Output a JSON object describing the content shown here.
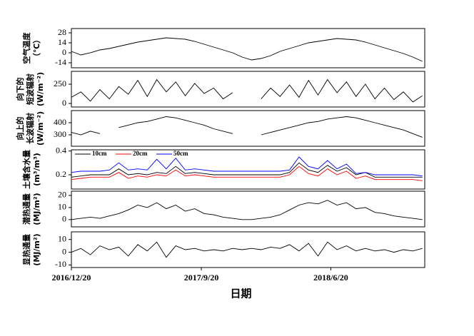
{
  "chart_data": [
    {
      "type": "line",
      "ylabel": [
        "空气温度",
        "（℃）"
      ],
      "ylim": [
        -21,
        34
      ],
      "yticks": [
        28,
        14,
        0,
        -14
      ],
      "xlim": [
        "2016/12/20",
        "2019/1/4"
      ],
      "x": [
        "2016/12/20",
        "2017/1/9",
        "2017/1/29",
        "2017/2/18",
        "2017/3/10",
        "2017/3/30",
        "2017/4/19",
        "2017/5/9",
        "2017/5/29",
        "2017/6/18",
        "2017/7/8",
        "2017/7/28",
        "2017/8/17",
        "2017/9/6",
        "2017/9/26",
        "2017/10/16",
        "2017/11/5",
        "2017/11/25",
        "2017/12/15",
        "2018/1/4",
        "2018/1/24",
        "2018/2/13",
        "2018/3/5",
        "2018/3/25",
        "2018/4/14",
        "2018/5/4",
        "2018/5/24",
        "2018/6/13",
        "2018/7/3",
        "2018/7/23",
        "2018/8/12",
        "2018/9/1",
        "2018/9/21",
        "2018/10/11",
        "2018/10/31",
        "2018/11/20",
        "2018/12/10",
        "2018/12/30"
      ],
      "series": [
        {
          "color": "#000000",
          "values": [
            2,
            -3,
            0,
            4,
            6,
            9,
            12,
            15,
            17,
            19,
            21,
            20,
            19,
            16,
            12,
            8,
            4,
            0,
            -6,
            -10,
            -8,
            -4,
            2,
            6,
            10,
            14,
            16,
            18,
            20,
            19,
            18,
            15,
            11,
            7,
            3,
            -1,
            -6,
            -12
          ]
        }
      ]
    },
    {
      "type": "line",
      "ylabel": [
        "向下的",
        "短波辐射",
        "(W/m⁻²)"
      ],
      "ylim": [
        -46,
        417
      ],
      "yticks": [
        250,
        0
      ],
      "xlim": [
        "2016/12/20",
        "2019/1/4"
      ],
      "x": [
        "2016/12/20",
        "2017/1/9",
        "2017/1/29",
        "2017/2/18",
        "2017/3/10",
        "2017/3/30",
        "2017/4/19",
        "2017/5/9",
        "2017/5/29",
        "2017/6/18",
        "2017/7/8",
        "2017/7/28",
        "2017/8/17",
        "2017/9/6",
        "2017/9/26",
        "2017/10/16",
        "2017/11/5",
        "2017/11/25",
        "2017/12/15",
        "2018/1/4",
        "2018/1/24",
        "2018/2/13",
        "2018/3/5",
        "2018/3/25",
        "2018/4/14",
        "2018/5/4",
        "2018/5/24",
        "2018/6/13",
        "2018/7/3",
        "2018/7/23",
        "2018/8/12",
        "2018/9/1",
        "2018/9/21",
        "2018/10/11",
        "2018/10/31",
        "2018/11/20",
        "2018/12/10",
        "2018/12/30"
      ],
      "series": [
        {
          "color": "#000000",
          "values": [
            80,
            150,
            30,
            180,
            60,
            220,
            120,
            300,
            90,
            310,
            150,
            280,
            100,
            260,
            130,
            200,
            60,
            140,
            null,
            null,
            60,
            200,
            90,
            240,
            80,
            300,
            110,
            310,
            140,
            280,
            90,
            250,
            60,
            200,
            50,
            150,
            20,
            100
          ]
        }
      ]
    },
    {
      "type": "line",
      "ylabel": [
        "向上的",
        "长波辐射",
        "(W/m⁻²)"
      ],
      "ylim": [
        206,
        500
      ],
      "yticks": [
        400,
        300
      ],
      "xlim": [
        "2016/12/20",
        "2019/1/4"
      ],
      "x": [
        "2016/12/20",
        "2017/1/9",
        "2017/1/29",
        "2017/2/18",
        "2017/3/10",
        "2017/3/30",
        "2017/4/19",
        "2017/5/9",
        "2017/5/29",
        "2017/6/18",
        "2017/7/8",
        "2017/7/28",
        "2017/8/17",
        "2017/9/6",
        "2017/9/26",
        "2017/10/16",
        "2017/11/5",
        "2017/11/25",
        "2017/12/15",
        "2018/1/4",
        "2018/1/24",
        "2018/2/13",
        "2018/3/5",
        "2018/3/25",
        "2018/4/14",
        "2018/5/4",
        "2018/5/24",
        "2018/6/13",
        "2018/7/3",
        "2018/7/23",
        "2018/8/12",
        "2018/9/1",
        "2018/9/21",
        "2018/10/11",
        "2018/10/31",
        "2018/11/20",
        "2018/12/10",
        "2018/12/30"
      ],
      "series": [
        {
          "color": "#000000",
          "values": [
            320,
            300,
            330,
            310,
            null,
            360,
            380,
            400,
            410,
            430,
            450,
            440,
            420,
            400,
            380,
            350,
            330,
            310,
            null,
            null,
            300,
            320,
            340,
            360,
            380,
            400,
            410,
            430,
            440,
            450,
            440,
            420,
            400,
            380,
            360,
            340,
            310,
            280
          ]
        }
      ]
    },
    {
      "type": "line",
      "ylabel": [
        "土壤含水量",
        "(m³/m³)"
      ],
      "ylim": [
        0.08,
        0.41
      ],
      "yticks": [
        0.4,
        0.2
      ],
      "xlim": [
        "2016/12/20",
        "2019/1/4"
      ],
      "legend": "upper left",
      "x": [
        "2016/12/20",
        "2017/1/9",
        "2017/1/29",
        "2017/2/18",
        "2017/3/10",
        "2017/3/30",
        "2017/4/19",
        "2017/5/9",
        "2017/5/29",
        "2017/6/18",
        "2017/7/8",
        "2017/7/28",
        "2017/8/17",
        "2017/9/6",
        "2017/9/26",
        "2017/10/16",
        "2017/11/5",
        "2017/11/25",
        "2017/12/15",
        "2018/1/4",
        "2018/1/24",
        "2018/2/13",
        "2018/3/5",
        "2018/3/25",
        "2018/4/14",
        "2018/5/4",
        "2018/5/24",
        "2018/6/13",
        "2018/7/3",
        "2018/7/23",
        "2018/8/12",
        "2018/9/1",
        "2018/9/21",
        "2018/10/11",
        "2018/10/31",
        "2018/11/20",
        "2018/12/10",
        "2018/12/30"
      ],
      "series": [
        {
          "name": "10cm",
          "color": "#000000",
          "values": [
            0.18,
            0.19,
            0.2,
            0.2,
            0.2,
            0.25,
            0.2,
            0.21,
            0.2,
            0.22,
            0.21,
            0.27,
            0.21,
            0.22,
            0.21,
            0.2,
            0.2,
            0.2,
            0.2,
            0.2,
            0.2,
            0.2,
            0.2,
            0.22,
            0.3,
            0.24,
            0.22,
            0.28,
            0.23,
            0.26,
            0.2,
            0.22,
            0.18,
            0.18,
            0.18,
            0.18,
            0.18,
            0.18
          ]
        },
        {
          "name": "20cm",
          "color": "#ff0000",
          "values": [
            0.16,
            0.17,
            0.18,
            0.18,
            0.18,
            0.22,
            0.17,
            0.19,
            0.18,
            0.2,
            0.19,
            0.24,
            0.19,
            0.2,
            0.19,
            0.18,
            0.18,
            0.18,
            0.18,
            0.18,
            0.18,
            0.18,
            0.18,
            0.2,
            0.27,
            0.21,
            0.19,
            0.25,
            0.2,
            0.23,
            0.17,
            0.19,
            0.16,
            0.16,
            0.16,
            0.16,
            0.16,
            0.15
          ]
        },
        {
          "name": "50cm",
          "color": "#0000ff",
          "values": [
            0.22,
            0.23,
            0.23,
            0.23,
            0.24,
            0.3,
            0.24,
            0.25,
            0.24,
            0.33,
            0.25,
            0.34,
            0.24,
            0.25,
            0.24,
            0.23,
            0.23,
            0.23,
            0.23,
            0.23,
            0.23,
            0.23,
            0.23,
            0.24,
            0.35,
            0.27,
            0.25,
            0.32,
            0.25,
            0.29,
            0.21,
            0.22,
            0.2,
            0.2,
            0.2,
            0.2,
            0.2,
            0.19
          ]
        }
      ]
    },
    {
      "type": "line",
      "ylabel": [
        "潜热通量",
        "(MJ/m²)"
      ],
      "ylim": [
        -6,
        23.5
      ],
      "yticks": [
        20,
        10,
        0
      ],
      "xlim": [
        "2016/12/20",
        "2019/1/4"
      ],
      "x": [
        "2016/12/20",
        "2017/1/9",
        "2017/1/29",
        "2017/2/18",
        "2017/3/10",
        "2017/3/30",
        "2017/4/19",
        "2017/5/9",
        "2017/5/29",
        "2017/6/18",
        "2017/7/8",
        "2017/7/28",
        "2017/8/17",
        "2017/9/6",
        "2017/9/26",
        "2017/10/16",
        "2017/11/5",
        "2017/11/25",
        "2017/12/15",
        "2018/1/4",
        "2018/1/24",
        "2018/2/13",
        "2018/3/5",
        "2018/3/25",
        "2018/4/14",
        "2018/5/4",
        "2018/5/24",
        "2018/6/13",
        "2018/7/3",
        "2018/7/23",
        "2018/8/12",
        "2018/9/1",
        "2018/9/21",
        "2018/10/11",
        "2018/10/31",
        "2018/11/20",
        "2018/12/10",
        "2018/12/30"
      ],
      "series": [
        {
          "color": "#000000",
          "values": [
            0,
            1,
            2,
            1,
            3,
            5,
            8,
            12,
            10,
            14,
            9,
            12,
            7,
            9,
            5,
            4,
            2,
            1,
            0,
            0,
            1,
            2,
            4,
            8,
            12,
            14,
            13,
            16,
            12,
            14,
            9,
            10,
            6,
            5,
            3,
            2,
            1,
            0
          ]
        }
      ]
    },
    {
      "type": "line",
      "ylabel": [
        "显热通量",
        "(MJ/m²)"
      ],
      "ylim": [
        -12,
        16
      ],
      "yticks": [
        10,
        0,
        -10
      ],
      "xlim": [
        "2016/12/20",
        "2019/1/4"
      ],
      "xticks": [
        "2016/12/20",
        "2017/9/20",
        "2018/6/20"
      ],
      "xlabel": "日期",
      "x": [
        "2016/12/20",
        "2017/1/9",
        "2017/1/29",
        "2017/2/18",
        "2017/3/10",
        "2017/3/30",
        "2017/4/19",
        "2017/5/9",
        "2017/5/29",
        "2017/6/18",
        "2017/7/8",
        "2017/7/28",
        "2017/8/17",
        "2017/9/6",
        "2017/9/26",
        "2017/10/16",
        "2017/11/5",
        "2017/11/25",
        "2017/12/15",
        "2018/1/4",
        "2018/1/24",
        "2018/2/13",
        "2018/3/5",
        "2018/3/25",
        "2018/4/14",
        "2018/5/4",
        "2018/5/24",
        "2018/6/13",
        "2018/7/3",
        "2018/7/23",
        "2018/8/12",
        "2018/9/1",
        "2018/9/21",
        "2018/10/11",
        "2018/10/31",
        "2018/11/20",
        "2018/12/10",
        "2018/12/30"
      ],
      "series": [
        {
          "color": "#000000",
          "values": [
            0,
            3,
            -2,
            5,
            2,
            4,
            -3,
            6,
            1,
            8,
            -4,
            5,
            2,
            3,
            1,
            2,
            1,
            3,
            2,
            3,
            2,
            4,
            3,
            6,
            1,
            7,
            -3,
            8,
            2,
            5,
            1,
            3,
            1,
            2,
            0,
            2,
            1,
            3
          ]
        }
      ]
    }
  ]
}
